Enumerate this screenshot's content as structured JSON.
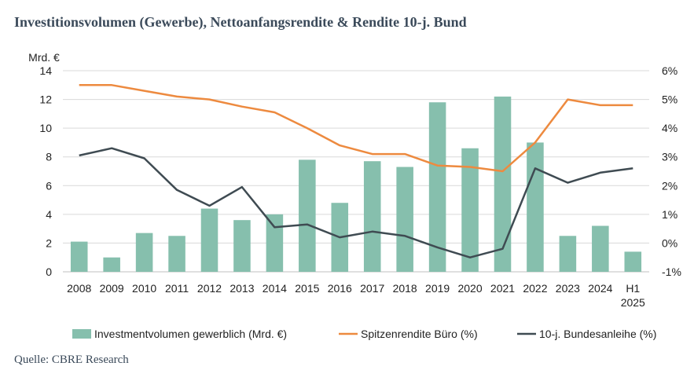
{
  "title": "Investitionsvolumen (Gewerbe), Nettoanfangsrendite & Rendite 10-j. Bund",
  "source": "Quelle: CBRE Research",
  "colors": {
    "bars": "#86bfad",
    "office_yield": "#ed8a3f",
    "bund_yield": "#3f4b52"
  },
  "chart_data": {
    "type": "bar",
    "left_axis_label": "Mrd. €",
    "categories": [
      "2008",
      "2009",
      "2010",
      "2011",
      "2012",
      "2013",
      "2014",
      "2015",
      "2016",
      "2017",
      "2018",
      "2019",
      "2020",
      "2021",
      "2022",
      "2023",
      "2024",
      "H1 2025"
    ],
    "left_ylim": [
      0,
      14
    ],
    "left_ticks": [
      0,
      2,
      4,
      6,
      8,
      10,
      12,
      14
    ],
    "right_ylim": [
      -1,
      6
    ],
    "right_ticks": [
      -1,
      0,
      1,
      2,
      3,
      4,
      5,
      6
    ],
    "right_tick_labels": [
      "-1%",
      "0%",
      "1%",
      "2%",
      "3%",
      "4%",
      "5%",
      "6%"
    ],
    "series": [
      {
        "name": "Investmentvolumen gewerblich (Mrd. €)",
        "type": "bar",
        "axis": "left",
        "values": [
          2.1,
          1.0,
          2.7,
          2.5,
          4.4,
          3.6,
          4.0,
          7.8,
          4.8,
          7.7,
          7.3,
          11.8,
          8.6,
          12.2,
          9.0,
          2.5,
          3.2,
          1.4
        ]
      },
      {
        "name": "Spitzenrendite Büro (%)",
        "type": "line",
        "axis": "right",
        "values": [
          5.5,
          5.5,
          5.3,
          5.1,
          5.0,
          4.75,
          4.55,
          4.0,
          3.4,
          3.1,
          3.1,
          2.7,
          2.65,
          2.5,
          3.5,
          5.0,
          4.8,
          4.8
        ]
      },
      {
        "name": "10-j. Bundesanleihe (%)",
        "type": "line",
        "axis": "right",
        "values": [
          3.05,
          3.3,
          2.95,
          1.85,
          1.3,
          1.95,
          0.55,
          0.65,
          0.2,
          0.4,
          0.25,
          -0.15,
          -0.5,
          -0.2,
          2.6,
          2.1,
          2.45,
          2.6
        ]
      }
    ]
  }
}
